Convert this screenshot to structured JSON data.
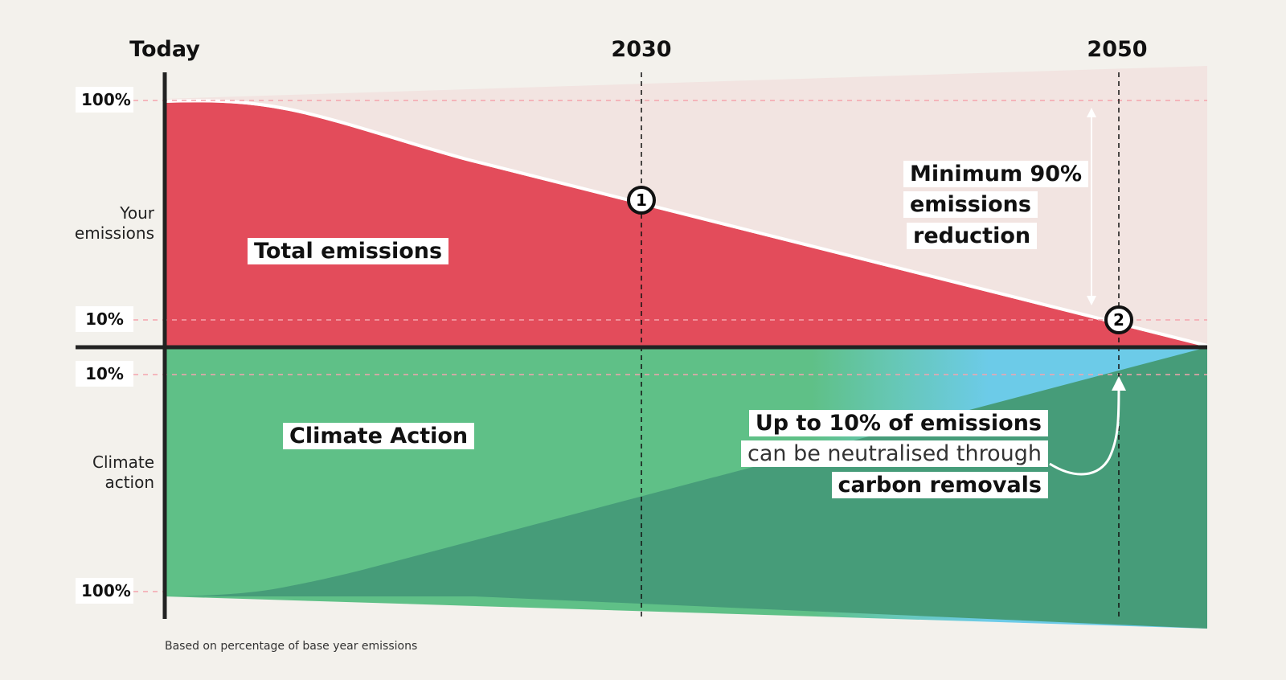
{
  "timeline": {
    "today": "Today",
    "y2030": "2030",
    "y2050": "2050"
  },
  "axis_labels": {
    "top_100": "100%",
    "top_10": "10%",
    "bottom_10": "10%",
    "bottom_100": "100%",
    "your_emissions": "Your\nemissions",
    "climate_action": "Climate\naction"
  },
  "areas": {
    "total_emissions": "Total emissions",
    "climate_action": "Climate Action"
  },
  "callouts": {
    "reduction_line1": "Minimum 90%",
    "reduction_line2": "emissions",
    "reduction_line3": "reduction",
    "removals_line1": "Up to 10% of emissions",
    "removals_line2": "can be neutralised through",
    "removals_line3": "carbon removals"
  },
  "markers": {
    "m1": "1",
    "m2": "2"
  },
  "footnote": "Based on percentage of base year emissions",
  "colors": {
    "background": "#f3f1ec",
    "emissions_red": "#e34c5b",
    "headroom_pink": "#f2e4e1",
    "climate_light_green": "#5fc087",
    "climate_dark_green": "#469c79",
    "removals_blue": "#6ccbe8",
    "axis": "#222222"
  }
}
